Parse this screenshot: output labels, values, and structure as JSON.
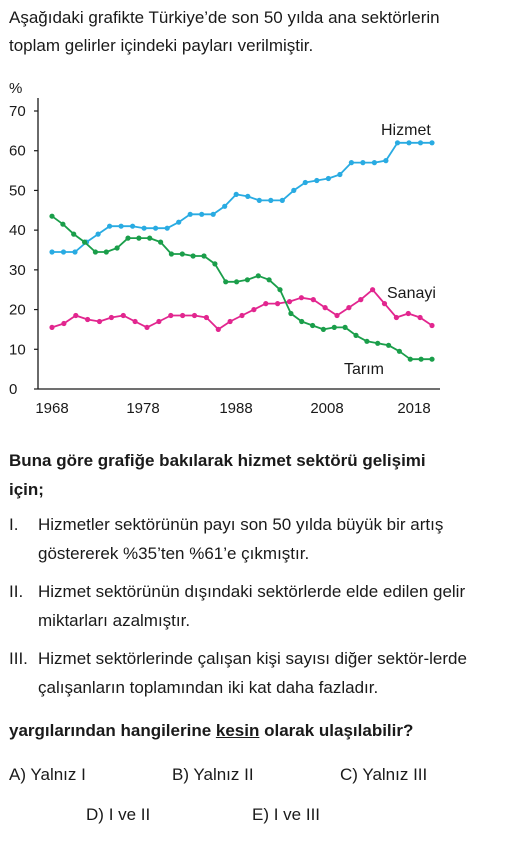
{
  "intro": {
    "line1": "Aşağıdaki grafikte Türkiye’de son 50 yılda ana sektörlerin",
    "line2": "toplam gelirler içindeki payları verilmiştir."
  },
  "chart_data": {
    "type": "line",
    "ylabel": "%",
    "xlabel": "",
    "ylim": [
      0,
      70
    ],
    "yticks": [
      0,
      10,
      20,
      30,
      40,
      50,
      60,
      70
    ],
    "xtick_labels": [
      "1968",
      "1978",
      "1988",
      "2008",
      "2018"
    ],
    "grid": false,
    "series": [
      {
        "name": "Hizmet",
        "color": "#29abe2",
        "values": [
          34.5,
          34.5,
          34.5,
          37,
          39,
          41,
          41,
          41,
          40.5,
          40.5,
          40.5,
          42,
          44,
          44,
          44,
          46,
          49,
          48.5,
          47.5,
          47.5,
          47.5,
          50,
          52,
          52.5,
          53,
          54,
          57,
          57,
          57,
          57.5,
          62,
          62,
          62,
          62
        ]
      },
      {
        "name": "Sanayi",
        "color": "#e2268f",
        "values": [
          15.5,
          16.5,
          18.5,
          17.5,
          17,
          18,
          18.5,
          17,
          15.5,
          17,
          18.5,
          18.5,
          18.5,
          18,
          15,
          17,
          18.5,
          20,
          21.5,
          21.5,
          22,
          23,
          22.5,
          20.5,
          18.5,
          20.5,
          22.5,
          25,
          21.5,
          18,
          19,
          18,
          16
        ]
      },
      {
        "name": "Tarım",
        "color": "#1a9e4a",
        "values": [
          43.5,
          41.5,
          39,
          37,
          34.5,
          34.5,
          35.5,
          38,
          38,
          38,
          37,
          34,
          34,
          33.5,
          33.5,
          31.5,
          27,
          27,
          27.5,
          28.5,
          27.5,
          25,
          19,
          17,
          16,
          15,
          15.5,
          15.5,
          13.5,
          12,
          11.5,
          11,
          9.5,
          7.5,
          7.5,
          7.5
        ]
      }
    ]
  },
  "question": {
    "line1": "Buna göre grafiğe bakılarak hizmet sektörü gelişimi",
    "line2": "için;"
  },
  "statements": [
    {
      "num": "I.",
      "text": "Hizmetler sektörünün payı son 50 yılda büyük bir artış göstererek %35’ten %61’e çıkmıştır."
    },
    {
      "num": "II.",
      "text": "Hizmet sektörünün dışındaki sektörlerde elde edilen gelir miktarları azalmıştır."
    },
    {
      "num": "III.",
      "text": "Hizmet sektörlerinde çalışan kişi sayısı diğer sektör-lerde çalışanların toplamından iki kat daha fazladır."
    }
  ],
  "closing": {
    "before": "yargılarından hangilerine ",
    "underlined": "kesin",
    "after": " olarak ulaşılabilir?"
  },
  "options": [
    {
      "letter": "A)",
      "text": "Yalnız I"
    },
    {
      "letter": "B)",
      "text": "Yalnız II"
    },
    {
      "letter": "C)",
      "text": "Yalnız III"
    },
    {
      "letter": "D)",
      "text": "I ve II"
    },
    {
      "letter": "E)",
      "text": "I ve III"
    }
  ]
}
